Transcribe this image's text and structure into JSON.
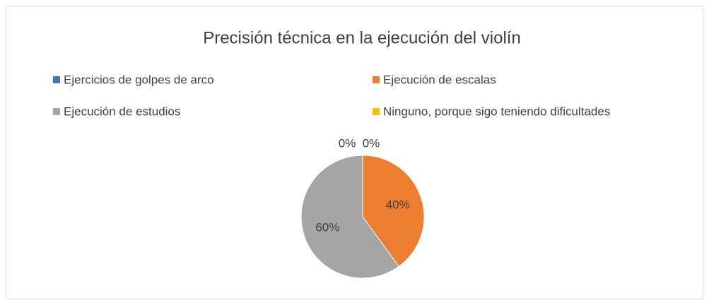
{
  "chart_data": {
    "type": "pie",
    "title": "Precisión técnica en la ejecución del violín",
    "categories": [
      "Ejercicios de golpes de arco",
      "Ejecución de escalas",
      "Ejecución de estudios",
      "Ninguno, porque sigo teniendo dificultades"
    ],
    "values": [
      0,
      40,
      60,
      0
    ],
    "value_labels": [
      "0%",
      "40%",
      "60%",
      "0%"
    ],
    "colors": [
      "#4472c4",
      "#ed7d31",
      "#a5a5a5",
      "#ffc000"
    ],
    "legend": "top"
  }
}
